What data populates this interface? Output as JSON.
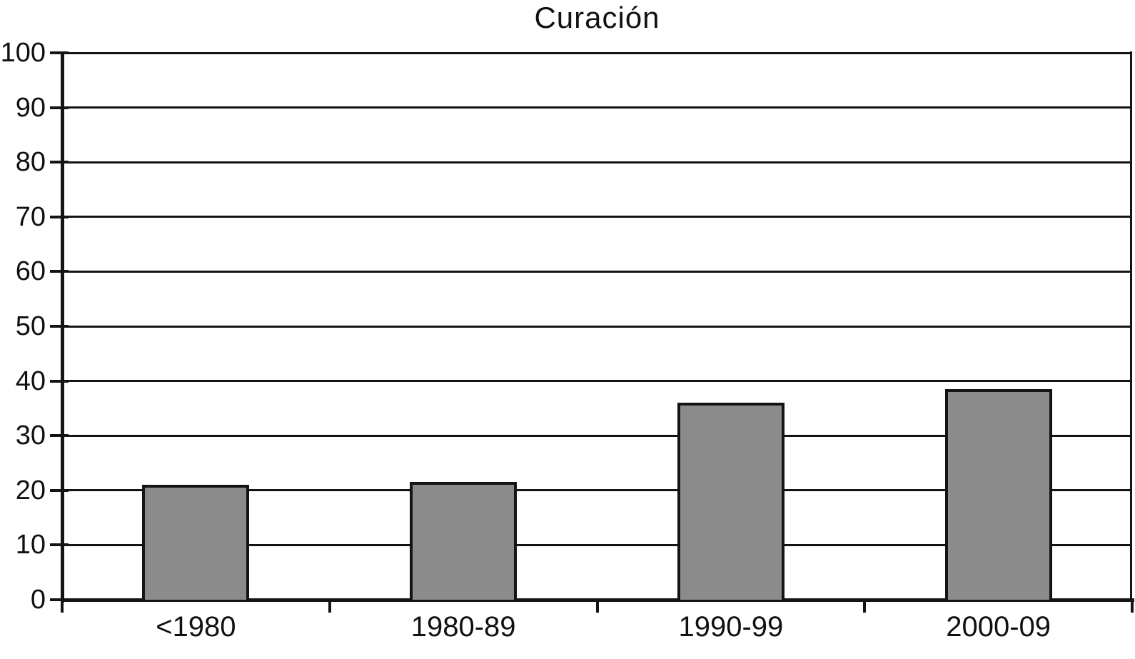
{
  "chart_data": {
    "type": "bar",
    "title": "Curación",
    "categories": [
      "<1980",
      "1980-89",
      "1990-99",
      "2000-09"
    ],
    "values": [
      21,
      21.5,
      36,
      38.5
    ],
    "xlabel": "",
    "ylabel": "",
    "ylim": [
      0,
      100
    ],
    "ytick_step": 10,
    "ytick_labels": [
      "0",
      "10",
      "20",
      "30",
      "40",
      "50",
      "60",
      "70",
      "80",
      "90",
      "100"
    ],
    "grid": "horizontal",
    "legend": "none",
    "bar_color": "#8b8b8b",
    "bar_border_color": "#141414",
    "axis_color": "#141414",
    "background_color": "#ffffff"
  }
}
